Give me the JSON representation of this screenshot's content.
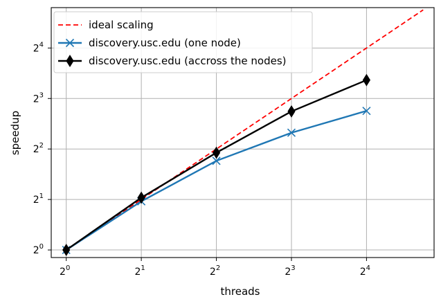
{
  "chart_data": {
    "type": "line",
    "title": "",
    "xlabel": "threads",
    "ylabel": "speedup",
    "x_scale": "log2",
    "y_scale": "log2",
    "xlim_log2": [
      -0.2,
      4.9
    ],
    "ylim_log2": [
      -0.15,
      4.8
    ],
    "grid": true,
    "legend_position": "top-left",
    "x_ticks": [
      {
        "base": "2",
        "exp": "0",
        "value": 1
      },
      {
        "base": "2",
        "exp": "1",
        "value": 2
      },
      {
        "base": "2",
        "exp": "2",
        "value": 4
      },
      {
        "base": "2",
        "exp": "3",
        "value": 8
      },
      {
        "base": "2",
        "exp": "4",
        "value": 16
      }
    ],
    "y_ticks": [
      {
        "base": "2",
        "exp": "0",
        "value": 1
      },
      {
        "base": "2",
        "exp": "1",
        "value": 2
      },
      {
        "base": "2",
        "exp": "2",
        "value": 4
      },
      {
        "base": "2",
        "exp": "3",
        "value": 8
      },
      {
        "base": "2",
        "exp": "4",
        "value": 16
      }
    ],
    "series": [
      {
        "name": "ideal scaling",
        "style": "dashed",
        "marker": "none",
        "color": "#ff0000",
        "x": [
          1,
          2,
          4,
          8,
          16,
          27
        ],
        "y": [
          1,
          2,
          4,
          8,
          16,
          27
        ]
      },
      {
        "name": "discovery.usc.edu (one node)",
        "style": "solid",
        "marker": "x",
        "color": "#1f77b4",
        "x": [
          1,
          2,
          4,
          8,
          16
        ],
        "y": [
          1,
          1.95,
          3.4,
          5.0,
          6.75
        ]
      },
      {
        "name": "discovery.usc.edu (accross the nodes)",
        "style": "solid",
        "marker": "thin_diamond",
        "color": "#000000",
        "x": [
          1,
          2,
          4,
          8,
          16
        ],
        "y": [
          1,
          2.05,
          3.8,
          6.7,
          10.3
        ]
      }
    ]
  }
}
